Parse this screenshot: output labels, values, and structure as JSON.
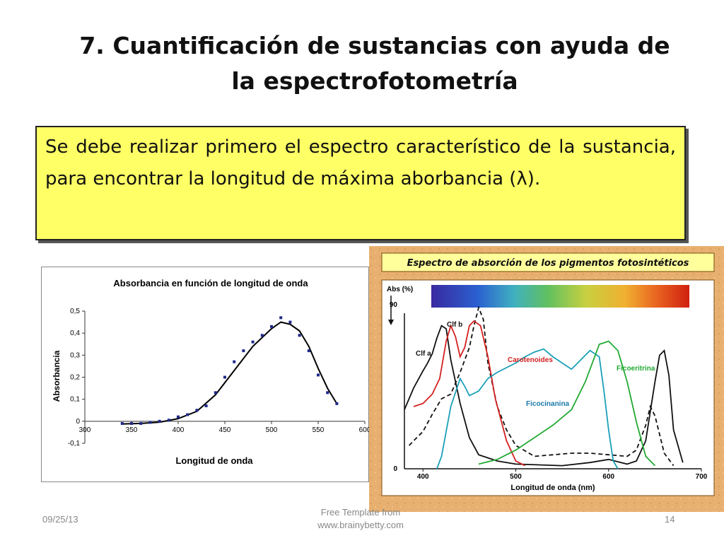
{
  "slide": {
    "title_line1": "7. Cuantificación de sustancias con ayuda de",
    "title_line2": "la espectrofotometría",
    "note_text": "Se debe realizar primero el espectro característico de la sustancia, para encontrar la longitud de máxima aborbancia (λ).",
    "footer_date": "09/25/13",
    "footer_center_line1": "Free Template from",
    "footer_center_line2": "www.brainybetty.com",
    "page_number": "14"
  },
  "chart_data": [
    {
      "type": "scatter",
      "title": "Absorbancia en función de longitud de onda",
      "xlabel": "Longitud de onda",
      "ylabel": "Absorbancia",
      "xlim": [
        300,
        600
      ],
      "ylim": [
        -0.1,
        0.5
      ],
      "x_ticks": [
        300,
        350,
        400,
        450,
        500,
        550,
        600
      ],
      "y_ticks": [
        -0.1,
        0,
        0.1,
        0.2,
        0.3,
        0.4,
        0.5
      ],
      "y_tick_labels": [
        "-0,1",
        "0",
        "0,1",
        "0,2",
        "0,3",
        "0,4",
        "0,5"
      ],
      "grid": false,
      "points": [
        [
          340,
          -0.01
        ],
        [
          350,
          -0.01
        ],
        [
          360,
          -0.01
        ],
        [
          370,
          -0.005
        ],
        [
          380,
          0
        ],
        [
          390,
          0.005
        ],
        [
          400,
          0.02
        ],
        [
          410,
          0.03
        ],
        [
          420,
          0.05
        ],
        [
          430,
          0.07
        ],
        [
          440,
          0.13
        ],
        [
          450,
          0.2
        ],
        [
          460,
          0.27
        ],
        [
          470,
          0.32
        ],
        [
          480,
          0.36
        ],
        [
          490,
          0.39
        ],
        [
          500,
          0.43
        ],
        [
          510,
          0.47
        ],
        [
          520,
          0.45
        ],
        [
          530,
          0.39
        ],
        [
          540,
          0.32
        ],
        [
          550,
          0.21
        ],
        [
          560,
          0.13
        ],
        [
          570,
          0.08
        ]
      ],
      "fit_line": [
        [
          340,
          -0.012
        ],
        [
          360,
          -0.01
        ],
        [
          380,
          -0.004
        ],
        [
          400,
          0.012
        ],
        [
          420,
          0.045
        ],
        [
          440,
          0.12
        ],
        [
          460,
          0.23
        ],
        [
          480,
          0.34
        ],
        [
          500,
          0.42
        ],
        [
          510,
          0.45
        ],
        [
          520,
          0.44
        ],
        [
          530,
          0.41
        ],
        [
          540,
          0.34
        ],
        [
          550,
          0.24
        ],
        [
          560,
          0.15
        ],
        [
          570,
          0.08
        ]
      ],
      "colors": {
        "points": "#1f2a8a",
        "line": "#000000"
      }
    },
    {
      "type": "line",
      "title": "Espectro de absorción de los pigmentos fotosintéticos",
      "xlabel": "Longitud de onda (nm)",
      "ylabel": "Abs (%)",
      "xlim": [
        380,
        700
      ],
      "ylim": [
        0,
        100
      ],
      "x_ticks": [
        400,
        500,
        600,
        700
      ],
      "y_tick_labels": [
        "0",
        "90"
      ],
      "series": [
        {
          "name": "Clf a",
          "color": "#111111",
          "dash": false,
          "points": [
            [
              380,
              38
            ],
            [
              390,
              52
            ],
            [
              400,
              63
            ],
            [
              405,
              68
            ],
            [
              410,
              74
            ],
            [
              415,
              84
            ],
            [
              420,
              92
            ],
            [
              425,
              90
            ],
            [
              430,
              70
            ],
            [
              440,
              42
            ],
            [
              450,
              20
            ],
            [
              460,
              9
            ],
            [
              480,
              5
            ],
            [
              500,
              3
            ],
            [
              550,
              2
            ],
            [
              580,
              4
            ],
            [
              600,
              6
            ],
            [
              620,
              3
            ],
            [
              630,
              5
            ],
            [
              640,
              18
            ],
            [
              650,
              56
            ],
            [
              655,
              73
            ],
            [
              660,
              76
            ],
            [
              665,
              60
            ],
            [
              670,
              25
            ],
            [
              680,
              4
            ]
          ]
        },
        {
          "name": "Clf b",
          "color": "#111111",
          "dash": true,
          "points": [
            [
              385,
              15
            ],
            [
              400,
              24
            ],
            [
              410,
              35
            ],
            [
              420,
              45
            ],
            [
              430,
              48
            ],
            [
              440,
              62
            ],
            [
              450,
              78
            ],
            [
              455,
              92
            ],
            [
              460,
              105
            ],
            [
              465,
              96
            ],
            [
              470,
              68
            ],
            [
              480,
              40
            ],
            [
              490,
              25
            ],
            [
              500,
              15
            ],
            [
              520,
              8
            ],
            [
              560,
              10
            ],
            [
              580,
              10
            ],
            [
              600,
              9
            ],
            [
              620,
              8
            ],
            [
              630,
              12
            ],
            [
              640,
              28
            ],
            [
              645,
              40
            ],
            [
              650,
              34
            ],
            [
              660,
              10
            ],
            [
              670,
              2
            ]
          ]
        },
        {
          "name": "Carotenoides",
          "color": "#d42020",
          "dash": false,
          "points": [
            [
              390,
              40
            ],
            [
              400,
              42
            ],
            [
              410,
              48
            ],
            [
              418,
              58
            ],
            [
              425,
              82
            ],
            [
              430,
              92
            ],
            [
              435,
              85
            ],
            [
              440,
              72
            ],
            [
              445,
              78
            ],
            [
              450,
              92
            ],
            [
              455,
              95
            ],
            [
              462,
              92
            ],
            [
              470,
              72
            ],
            [
              478,
              45
            ],
            [
              490,
              18
            ],
            [
              500,
              5
            ],
            [
              510,
              2
            ]
          ]
        },
        {
          "name": "Ficocinanina",
          "color": "#1aa0b8",
          "dash": false,
          "points": [
            [
              415,
              0
            ],
            [
              420,
              8
            ],
            [
              430,
              40
            ],
            [
              440,
              58
            ],
            [
              445,
              53
            ],
            [
              450,
              47
            ],
            [
              460,
              50
            ],
            [
              470,
              58
            ],
            [
              480,
              62
            ],
            [
              490,
              65
            ],
            [
              500,
              68
            ],
            [
              510,
              72
            ],
            [
              520,
              75
            ],
            [
              530,
              77
            ],
            [
              540,
              72
            ],
            [
              550,
              68
            ],
            [
              560,
              64
            ],
            [
              570,
              70
            ],
            [
              580,
              76
            ],
            [
              590,
              72
            ],
            [
              595,
              50
            ],
            [
              600,
              25
            ],
            [
              605,
              5
            ],
            [
              610,
              0
            ]
          ]
        },
        {
          "name": "Ficoeritrina",
          "color": "#22aa33",
          "dash": false,
          "points": [
            [
              460,
              3
            ],
            [
              480,
              6
            ],
            [
              500,
              12
            ],
            [
              520,
              20
            ],
            [
              540,
              28
            ],
            [
              560,
              38
            ],
            [
              575,
              56
            ],
            [
              585,
              72
            ],
            [
              590,
              80
            ],
            [
              600,
              82
            ],
            [
              610,
              76
            ],
            [
              620,
              56
            ],
            [
              630,
              30
            ],
            [
              640,
              8
            ],
            [
              650,
              2
            ]
          ]
        }
      ],
      "spectrum_bar": true,
      "colors": {
        "background": "#e8b070",
        "frame_bg": "#ffffff"
      }
    }
  ]
}
